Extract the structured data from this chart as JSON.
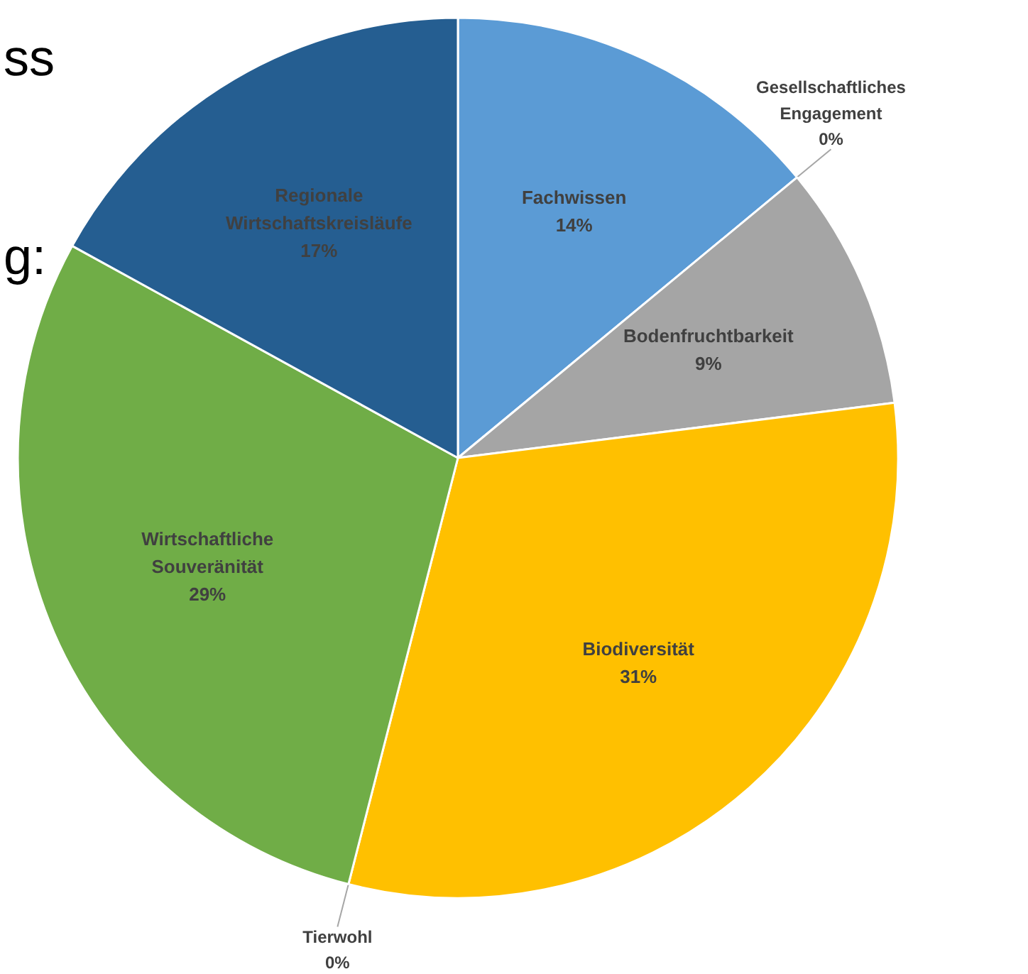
{
  "chart_data": {
    "type": "pie",
    "categories": [
      "Fachwissen",
      "Gesellschaftliches Engagement",
      "Bodenfruchtbarkeit",
      "Biodiversität",
      "Tierwohl",
      "Wirtschaftliche Souveränität",
      "Regionale Wirtschaftskreisläufe"
    ],
    "values": [
      14,
      0,
      9,
      31,
      0,
      29,
      17
    ],
    "colors": [
      "#5b9bd5",
      "#ed7d31",
      "#a5a5a5",
      "#ffc000",
      "#4472c4",
      "#70ad47",
      "#255e91"
    ],
    "value_labels": [
      "14%",
      "0%",
      "9%",
      "31%",
      "0%",
      "29%",
      "17%"
    ],
    "annotations": [
      "ss",
      "g:"
    ]
  }
}
